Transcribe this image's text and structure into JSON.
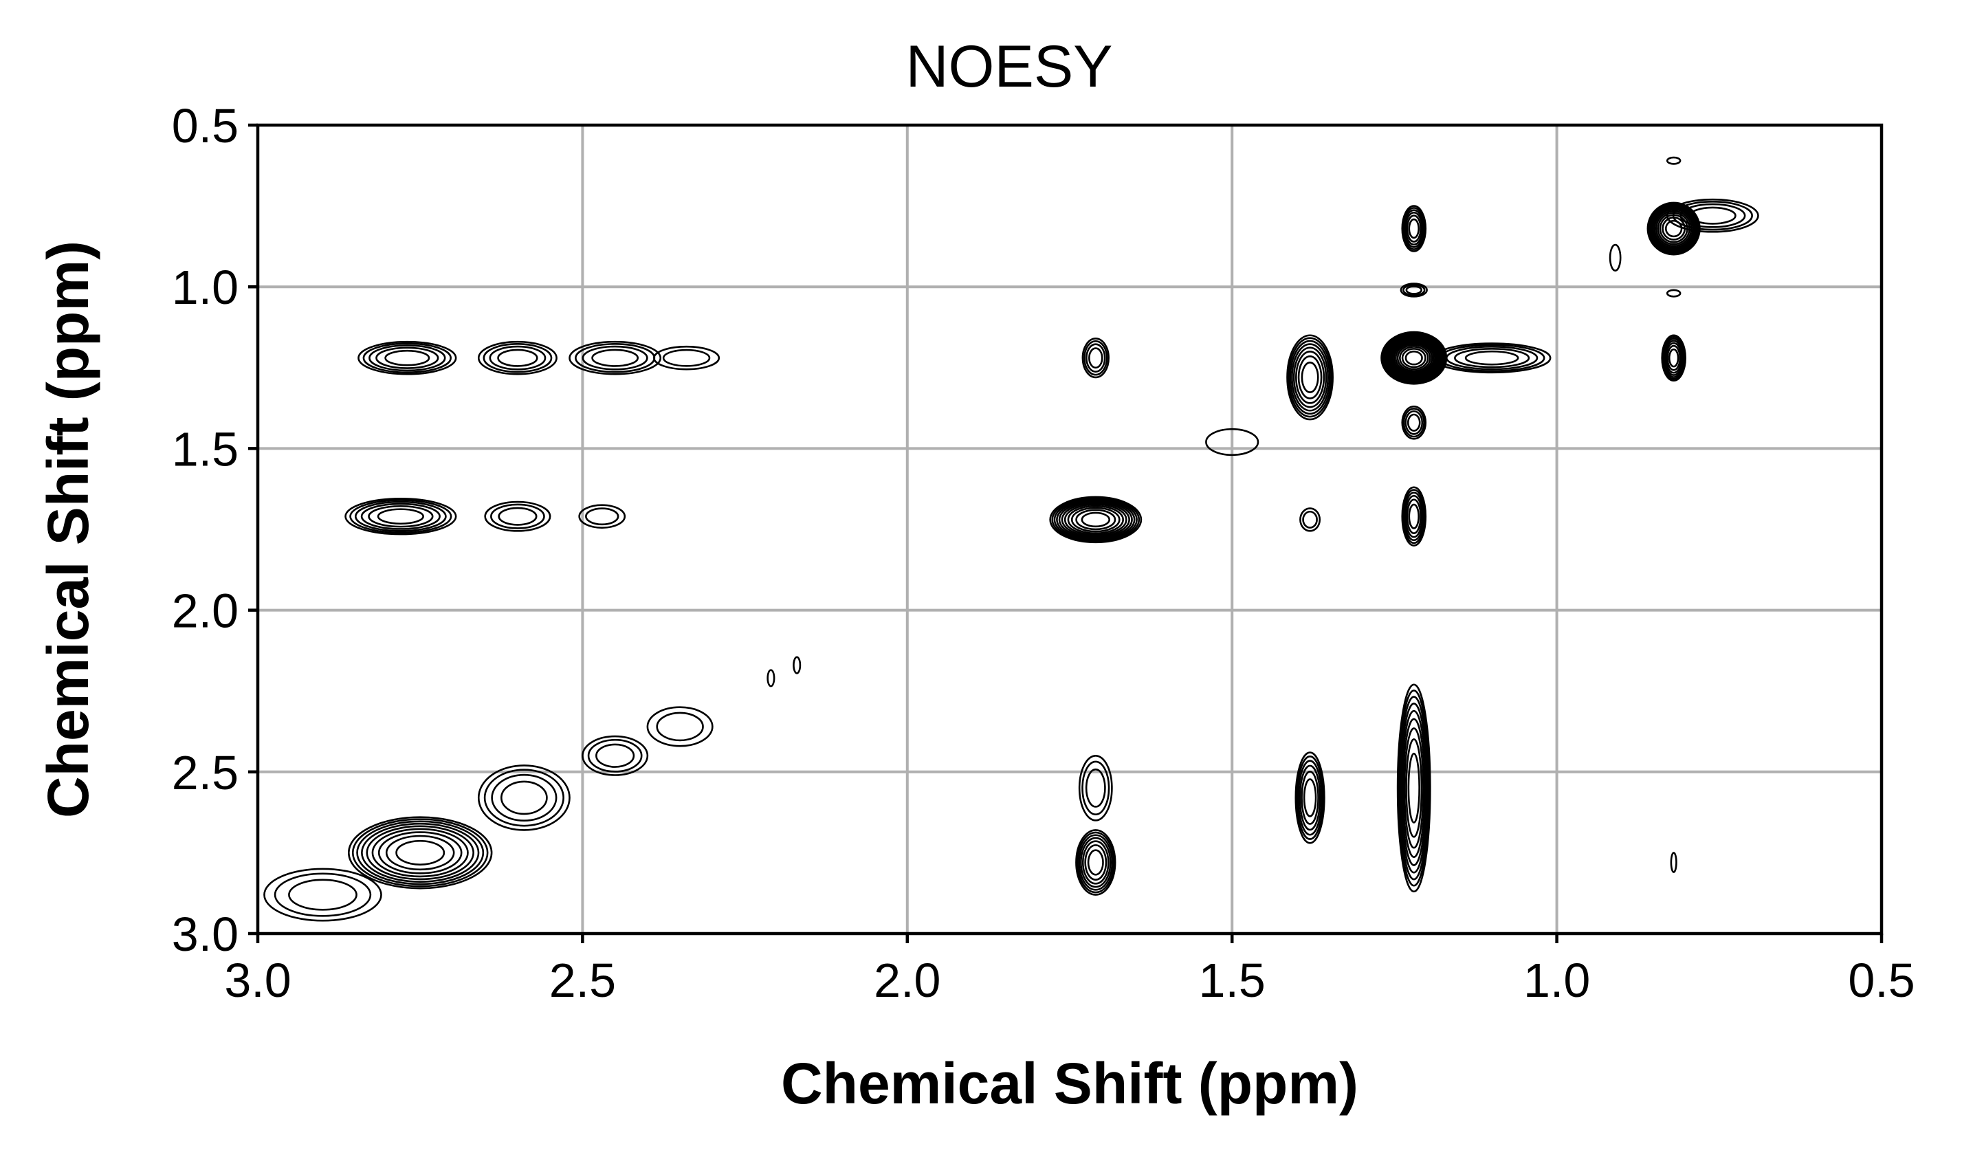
{
  "chart_data": {
    "type": "contour",
    "title": "NOESY",
    "xlabel": "Chemical Shift (ppm)",
    "ylabel": "Chemical Shift (ppm)",
    "xlim": [
      3.0,
      0.5
    ],
    "ylim": [
      3.0,
      0.5
    ],
    "x_reversed": true,
    "y_reversed": true,
    "x_ticks": [
      3.0,
      2.5,
      2.0,
      1.5,
      1.0,
      0.5
    ],
    "x_tick_labels": [
      "3.0",
      "2.5",
      "2.0",
      "1.5",
      "1.0",
      "0.5"
    ],
    "y_ticks": [
      0.5,
      1.0,
      1.5,
      2.0,
      2.5,
      3.0
    ],
    "y_tick_labels": [
      "0.5",
      "1.0",
      "1.5",
      "2.0",
      "2.5",
      "3.0"
    ],
    "grid": true,
    "line_color": "#000000",
    "grid_color": "#b0b0b0",
    "peaks": [
      {
        "x": 2.77,
        "y": 1.22,
        "sx": 0.075,
        "sy": 0.05,
        "levels": 5
      },
      {
        "x": 2.6,
        "y": 1.22,
        "sx": 0.06,
        "sy": 0.05,
        "levels": 4
      },
      {
        "x": 2.45,
        "y": 1.22,
        "sx": 0.07,
        "sy": 0.05,
        "levels": 4
      },
      {
        "x": 2.34,
        "y": 1.22,
        "sx": 0.05,
        "sy": 0.035,
        "levels": 2
      },
      {
        "x": 2.78,
        "y": 1.71,
        "sx": 0.085,
        "sy": 0.055,
        "levels": 6
      },
      {
        "x": 2.6,
        "y": 1.71,
        "sx": 0.05,
        "sy": 0.045,
        "levels": 3
      },
      {
        "x": 2.47,
        "y": 1.71,
        "sx": 0.035,
        "sy": 0.035,
        "levels": 2
      },
      {
        "x": 2.75,
        "y": 2.75,
        "sx": 0.11,
        "sy": 0.11,
        "levels": 9
      },
      {
        "x": 2.59,
        "y": 2.58,
        "sx": 0.07,
        "sy": 0.1,
        "levels": 4
      },
      {
        "x": 2.45,
        "y": 2.45,
        "sx": 0.05,
        "sy": 0.06,
        "levels": 3
      },
      {
        "x": 2.35,
        "y": 2.36,
        "sx": 0.05,
        "sy": 0.06,
        "levels": 2
      },
      {
        "x": 2.9,
        "y": 2.88,
        "sx": 0.09,
        "sy": 0.08,
        "levels": 3
      },
      {
        "x": 2.21,
        "y": 2.21,
        "sx": 0.005,
        "sy": 0.025,
        "levels": 1
      },
      {
        "x": 2.17,
        "y": 2.17,
        "sx": 0.005,
        "sy": 0.025,
        "levels": 1
      },
      {
        "x": 1.71,
        "y": 1.22,
        "sx": 0.02,
        "sy": 0.06,
        "levels": 4
      },
      {
        "x": 1.71,
        "y": 1.72,
        "sx": 0.07,
        "sy": 0.07,
        "levels": 11
      },
      {
        "x": 1.71,
        "y": 2.78,
        "sx": 0.03,
        "sy": 0.1,
        "levels": 7
      },
      {
        "x": 1.71,
        "y": 2.55,
        "sx": 0.025,
        "sy": 0.1,
        "levels": 3
      },
      {
        "x": 1.38,
        "y": 1.28,
        "sx": 0.035,
        "sy": 0.13,
        "levels": 8
      },
      {
        "x": 1.38,
        "y": 1.72,
        "sx": 0.015,
        "sy": 0.035,
        "levels": 2
      },
      {
        "x": 1.38,
        "y": 2.58,
        "sx": 0.022,
        "sy": 0.14,
        "levels": 6
      },
      {
        "x": 1.22,
        "y": 1.22,
        "sx": 0.05,
        "sy": 0.08,
        "levels": 16
      },
      {
        "x": 1.1,
        "y": 1.22,
        "sx": 0.09,
        "sy": 0.045,
        "levels": 5
      },
      {
        "x": 1.22,
        "y": 0.82,
        "sx": 0.018,
        "sy": 0.07,
        "levels": 6
      },
      {
        "x": 1.22,
        "y": 1.01,
        "sx": 0.02,
        "sy": 0.02,
        "levels": 3
      },
      {
        "x": 1.22,
        "y": 1.42,
        "sx": 0.018,
        "sy": 0.05,
        "levels": 4
      },
      {
        "x": 1.22,
        "y": 1.71,
        "sx": 0.018,
        "sy": 0.09,
        "levels": 6
      },
      {
        "x": 1.22,
        "y": 2.55,
        "sx": 0.025,
        "sy": 0.32,
        "levels": 9
      },
      {
        "x": 0.82,
        "y": 0.82,
        "sx": 0.04,
        "sy": 0.08,
        "levels": 11
      },
      {
        "x": 0.76,
        "y": 0.78,
        "sx": 0.07,
        "sy": 0.05,
        "levels": 4
      },
      {
        "x": 0.82,
        "y": 1.22,
        "sx": 0.018,
        "sy": 0.07,
        "levels": 7
      },
      {
        "x": 0.82,
        "y": 1.02,
        "sx": 0.01,
        "sy": 0.01,
        "levels": 1
      },
      {
        "x": 0.82,
        "y": 0.61,
        "sx": 0.01,
        "sy": 0.01,
        "levels": 1
      },
      {
        "x": 0.91,
        "y": 0.91,
        "sx": 0.008,
        "sy": 0.04,
        "levels": 1
      },
      {
        "x": 0.82,
        "y": 2.78,
        "sx": 0.004,
        "sy": 0.03,
        "levels": 1
      },
      {
        "x": 1.5,
        "y": 1.48,
        "sx": 0.04,
        "sy": 0.04,
        "levels": 1
      }
    ]
  }
}
